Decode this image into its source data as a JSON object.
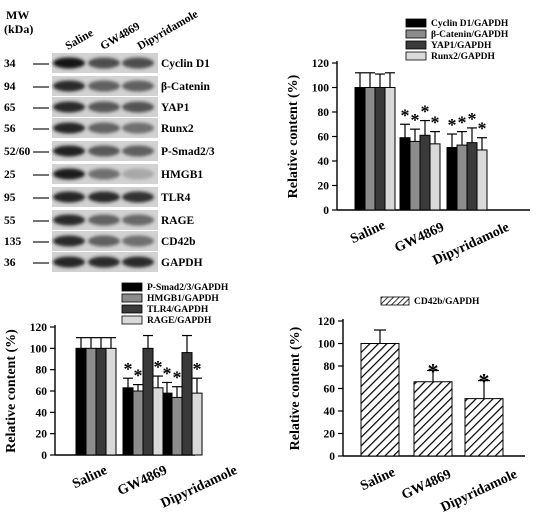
{
  "western_blot": {
    "mw_header": "MW",
    "unit_header": "(kDa)",
    "lanes": [
      "Saline",
      "GW4869",
      "Dipyridamole"
    ],
    "bands": [
      {
        "mw": "34",
        "protein": "Cyclin D1"
      },
      {
        "mw": "94",
        "protein": "β-Catenin"
      },
      {
        "mw": "65",
        "protein": "YAP1"
      },
      {
        "mw": "56",
        "protein": "Runx2"
      },
      {
        "mw": "52/60",
        "protein": "P-Smad2/3"
      },
      {
        "mw": "25",
        "protein": "HMGB1"
      },
      {
        "mw": "95",
        "protein": "TLR4"
      },
      {
        "mw": "55",
        "protein": "RAGE"
      },
      {
        "mw": "135",
        "protein": "CD42b"
      },
      {
        "mw": "36",
        "protein": "GAPDH"
      }
    ],
    "band_intensity": [
      [
        0.95,
        0.7,
        0.7
      ],
      [
        0.85,
        0.62,
        0.62
      ],
      [
        0.85,
        0.65,
        0.68
      ],
      [
        0.88,
        0.6,
        0.55
      ],
      [
        0.9,
        0.65,
        0.62
      ],
      [
        0.92,
        0.55,
        0.3
      ],
      [
        0.88,
        0.85,
        0.82
      ],
      [
        0.85,
        0.6,
        0.58
      ],
      [
        0.85,
        0.62,
        0.55
      ],
      [
        0.88,
        0.85,
        0.85
      ]
    ]
  },
  "chart_data": [
    {
      "type": "bar",
      "ylabel": "Relative content (%)",
      "ylim": [
        0,
        120
      ],
      "yticks": [
        0,
        20,
        40,
        60,
        80,
        100,
        120
      ],
      "categories": [
        "Saline",
        "GW4869",
        "Dipyridamole"
      ],
      "legend_position": "top",
      "series": [
        {
          "name": "Cyclin D1/GAPDH",
          "values": [
            100,
            59,
            51
          ],
          "errors": [
            12,
            11,
            11
          ],
          "fill": "#000000"
        },
        {
          "name": "β-Catenin/GAPDH",
          "values": [
            100,
            56,
            53
          ],
          "errors": [
            12,
            10,
            11
          ],
          "fill": "#8c8c8c"
        },
        {
          "name": "YAP1/GAPDH",
          "values": [
            100,
            61,
            55
          ],
          "errors": [
            11,
            12,
            12
          ],
          "fill": "#3a3a3a"
        },
        {
          "name": "Runx2/GAPDH",
          "values": [
            100,
            54,
            49
          ],
          "errors": [
            12,
            10,
            10
          ],
          "fill": "#d9d9d9"
        }
      ],
      "significance": [
        "",
        "*",
        "*"
      ]
    },
    {
      "type": "bar",
      "ylabel": "Relative content (%)",
      "ylim": [
        0,
        120
      ],
      "yticks": [
        0,
        20,
        40,
        60,
        80,
        100,
        120
      ],
      "categories": [
        "Saline",
        "GW4869",
        "Dipyridamole"
      ],
      "legend_position": "top",
      "series": [
        {
          "name": "P-Smad2/3/GAPDH",
          "values": [
            100,
            63,
            58
          ],
          "errors": [
            10,
            9,
            10
          ],
          "fill": "#000000",
          "significant": [
            false,
            true,
            true
          ]
        },
        {
          "name": "HMGB1/GAPDH",
          "values": [
            100,
            60,
            54
          ],
          "errors": [
            10,
            6,
            10
          ],
          "fill": "#8c8c8c",
          "significant": [
            false,
            true,
            true
          ]
        },
        {
          "name": "TLR4/GAPDH",
          "values": [
            100,
            100,
            96
          ],
          "errors": [
            10,
            12,
            16
          ],
          "fill": "#3a3a3a",
          "significant": [
            false,
            false,
            false
          ]
        },
        {
          "name": "RAGE/GAPDH",
          "values": [
            100,
            63,
            58
          ],
          "errors": [
            10,
            11,
            14
          ],
          "fill": "#d9d9d9",
          "significant": [
            false,
            true,
            true
          ]
        }
      ]
    },
    {
      "type": "bar",
      "ylabel": "Relative content (%)",
      "ylim": [
        0,
        120
      ],
      "yticks": [
        0,
        20,
        40,
        60,
        80,
        100,
        120
      ],
      "categories": [
        "Saline",
        "GW4869",
        "Dipyridamole"
      ],
      "legend_position": "top",
      "series": [
        {
          "name": "CD42b/GAPDH",
          "values": [
            100,
            66,
            51
          ],
          "errors": [
            12,
            10,
            16
          ],
          "fill": "hatched"
        }
      ],
      "significance": [
        "",
        "*",
        "*"
      ]
    }
  ]
}
